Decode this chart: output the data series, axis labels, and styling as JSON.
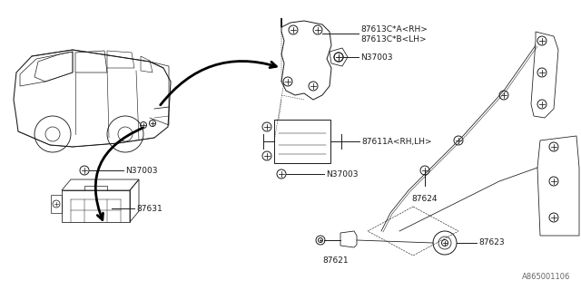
{
  "bg_color": "#ffffff",
  "line_color": "#1a1a1a",
  "watermark": "A865001106",
  "font_size": 6.5,
  "line_width": 0.7,
  "figsize": [
    6.4,
    3.2
  ],
  "dpi": 100,
  "labels": {
    "87613A": "87613C*A<RH>",
    "87613B": "87613C*B<LH>",
    "N37003": "N37003",
    "87611A": "87611A<RH,LH>",
    "87624": "87624",
    "87631": "87631",
    "87621": "87621",
    "87623": "87623"
  }
}
